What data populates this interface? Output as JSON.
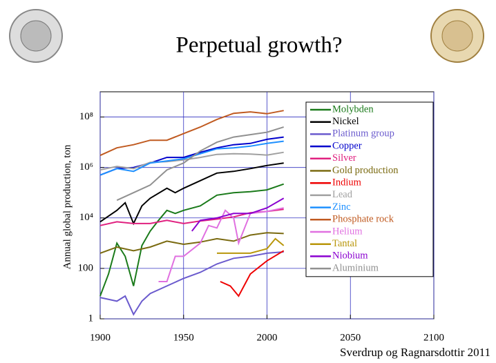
{
  "slide_title": "Perpetual growth?",
  "credit": "Sverdrup og Ragnarsdottir 2011",
  "chart_data": {
    "type": "line",
    "ylabel": "Annual global production, ton",
    "log_y": true,
    "grid": true,
    "legend": "upper right",
    "xlim": [
      1900,
      2100
    ],
    "xticks": [
      1900,
      1950,
      2000,
      2050,
      2100
    ],
    "ylim": [
      1,
      1000000000
    ],
    "yticks": [
      1,
      100,
      {
        "value": 10000,
        "label": "10⁴"
      },
      {
        "value": 1000000,
        "label": "10⁶"
      },
      {
        "value": 100000000,
        "label": "10⁸"
      }
    ],
    "series": [
      {
        "name": "Molybden",
        "color": "#1a7a1a",
        "x": [
          1900,
          1905,
          1910,
          1915,
          1920,
          1925,
          1930,
          1935,
          1940,
          1945,
          1950,
          1960,
          1970,
          1980,
          1990,
          2000,
          2010
        ],
        "values": [
          8,
          60,
          1000,
          300,
          20,
          800,
          3000,
          8000,
          20000,
          15000,
          20000,
          30000,
          80000,
          100000,
          110000,
          130000,
          220000
        ]
      },
      {
        "name": "Nickel",
        "color": "#000000",
        "x": [
          1900,
          1910,
          1915,
          1920,
          1925,
          1930,
          1940,
          1945,
          1950,
          1960,
          1970,
          1980,
          1990,
          2000,
          2010
        ],
        "values": [
          7000,
          20000,
          40000,
          6000,
          30000,
          60000,
          150000,
          100000,
          150000,
          300000,
          600000,
          700000,
          900000,
          1200000,
          1500000
        ]
      },
      {
        "name": "Platinum group",
        "color": "#6a5acd",
        "x": [
          1900,
          1910,
          1915,
          1920,
          1925,
          1930,
          1940,
          1950,
          1960,
          1970,
          1980,
          1990,
          2000,
          2010
        ],
        "values": [
          7,
          5,
          8,
          1.5,
          5,
          10,
          20,
          40,
          70,
          150,
          250,
          300,
          400,
          450
        ]
      },
      {
        "name": "Copper",
        "color": "#0000cc",
        "x": [
          1900,
          1910,
          1920,
          1930,
          1940,
          1950,
          1960,
          1970,
          1980,
          1990,
          2000,
          2010
        ],
        "values": [
          500000,
          900000,
          1000000,
          1500000,
          2500000,
          2500000,
          4000000,
          6000000,
          8000000,
          9000000,
          13000000,
          16000000
        ]
      },
      {
        "name": "Silver",
        "color": "#e0207f",
        "x": [
          1900,
          1910,
          1920,
          1930,
          1940,
          1950,
          1960,
          1970,
          1980,
          1990,
          2000,
          2010
        ],
        "values": [
          5000,
          7000,
          6000,
          6000,
          8000,
          6000,
          7500,
          9000,
          11000,
          16000,
          18000,
          22000
        ]
      },
      {
        "name": "Gold production",
        "color": "#7a6a10",
        "x": [
          1900,
          1910,
          1920,
          1930,
          1940,
          1950,
          1960,
          1970,
          1980,
          1990,
          2000,
          2010
        ],
        "values": [
          400,
          700,
          500,
          700,
          1200,
          900,
          1100,
          1500,
          1200,
          2100,
          2600,
          2400
        ]
      },
      {
        "name": "Indium",
        "color": "#ee0000",
        "x": [
          1972,
          1978,
          1983,
          1990,
          2000,
          2010
        ],
        "values": [
          30,
          20,
          8,
          60,
          200,
          500
        ]
      },
      {
        "name": "Lead",
        "color": "#a0a0a0",
        "x": [
          1900,
          1910,
          1920,
          1930,
          1940,
          1950,
          1960,
          1970,
          1980,
          1990,
          2000,
          2010
        ],
        "values": [
          800000,
          1100000,
          900000,
          1600000,
          1700000,
          2000000,
          2500000,
          3300000,
          3500000,
          3400000,
          3100000,
          4000000
        ]
      },
      {
        "name": "Zinc",
        "color": "#1e90ff",
        "x": [
          1900,
          1910,
          1920,
          1930,
          1940,
          1950,
          1960,
          1970,
          1980,
          1990,
          2000,
          2010
        ],
        "values": [
          500000,
          900000,
          700000,
          1500000,
          1800000,
          2200000,
          3500000,
          5500000,
          6000000,
          7000000,
          9000000,
          11000000
        ]
      },
      {
        "name": "Phosphate rock",
        "color": "#c05a20",
        "x": [
          1900,
          1910,
          1920,
          1930,
          1940,
          1950,
          1960,
          1970,
          1980,
          1990,
          2000,
          2010
        ],
        "values": [
          3000000,
          6000000,
          8000000,
          12000000,
          12000000,
          22000000,
          40000000,
          80000000,
          140000000,
          160000000,
          135000000,
          180000000
        ]
      },
      {
        "name": "Helium",
        "color": "#e070e0",
        "x": [
          1935,
          1940,
          1945,
          1950,
          1960,
          1965,
          1970,
          1975,
          1980,
          1983,
          1990,
          2000,
          2010
        ],
        "values": [
          30,
          30,
          300,
          300,
          1000,
          5000,
          4000,
          20000,
          10000,
          1000,
          15000,
          18000,
          25000
        ]
      },
      {
        "name": "Tantal",
        "color": "#b8960a",
        "x": [
          1970,
          1980,
          1990,
          2000,
          2005,
          2010
        ],
        "values": [
          400,
          400,
          400,
          600,
          1500,
          800
        ]
      },
      {
        "name": "Niobium",
        "color": "#8a00d0",
        "x": [
          1955,
          1960,
          1970,
          1980,
          1990,
          2000,
          2010
        ],
        "values": [
          3000,
          8000,
          10000,
          15000,
          15000,
          25000,
          60000
        ]
      },
      {
        "name": "Aluminium",
        "color": "#909090",
        "x": [
          1910,
          1920,
          1930,
          1940,
          1950,
          1960,
          1970,
          1980,
          1990,
          2000,
          2010
        ],
        "values": [
          50000,
          100000,
          200000,
          800000,
          1500000,
          4500000,
          10000000,
          16000000,
          20000000,
          25000000,
          40000000
        ]
      }
    ]
  }
}
